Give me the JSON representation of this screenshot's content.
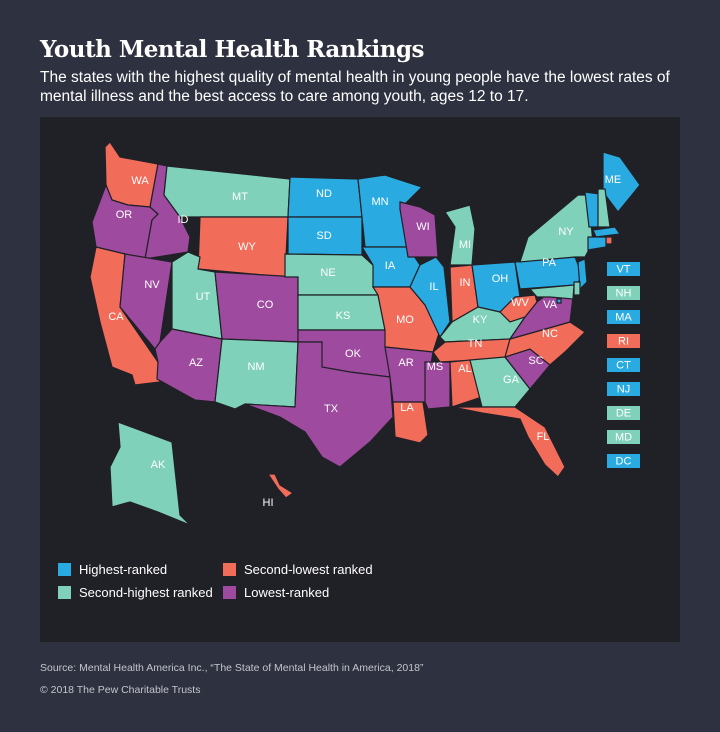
{
  "header": {
    "title": "Youth Mental Health Rankings",
    "subtitle": "The states with the highest quality of mental health in young people have the lowest rates of mental illness and the best access to care among youth, ages 12 to 17."
  },
  "colors": {
    "highest": "#29abe2",
    "second_highest": "#7fd1b9",
    "second_lowest": "#f26c5a",
    "lowest": "#9e4a9e"
  },
  "legend": [
    {
      "key": "highest",
      "label": "Highest-ranked"
    },
    {
      "key": "second_highest",
      "label": "Second-highest ranked"
    },
    {
      "key": "second_lowest",
      "label": "Second-lowest ranked"
    },
    {
      "key": "lowest",
      "label": "Lowest-ranked"
    }
  ],
  "states": [
    {
      "abbr": "WA",
      "rank": "second_lowest"
    },
    {
      "abbr": "OR",
      "rank": "lowest"
    },
    {
      "abbr": "CA",
      "rank": "second_lowest"
    },
    {
      "abbr": "ID",
      "rank": "lowest"
    },
    {
      "abbr": "NV",
      "rank": "lowest"
    },
    {
      "abbr": "MT",
      "rank": "second_highest"
    },
    {
      "abbr": "WY",
      "rank": "second_lowest"
    },
    {
      "abbr": "UT",
      "rank": "second_highest"
    },
    {
      "abbr": "CO",
      "rank": "lowest"
    },
    {
      "abbr": "AZ",
      "rank": "lowest"
    },
    {
      "abbr": "NM",
      "rank": "second_highest"
    },
    {
      "abbr": "ND",
      "rank": "highest"
    },
    {
      "abbr": "SD",
      "rank": "highest"
    },
    {
      "abbr": "NE",
      "rank": "second_highest"
    },
    {
      "abbr": "KS",
      "rank": "second_highest"
    },
    {
      "abbr": "OK",
      "rank": "lowest"
    },
    {
      "abbr": "TX",
      "rank": "lowest"
    },
    {
      "abbr": "MN",
      "rank": "highest"
    },
    {
      "abbr": "IA",
      "rank": "highest"
    },
    {
      "abbr": "MO",
      "rank": "second_lowest"
    },
    {
      "abbr": "AR",
      "rank": "lowest"
    },
    {
      "abbr": "LA",
      "rank": "second_lowest"
    },
    {
      "abbr": "WI",
      "rank": "lowest"
    },
    {
      "abbr": "IL",
      "rank": "highest"
    },
    {
      "abbr": "MI",
      "rank": "second_highest"
    },
    {
      "abbr": "IN",
      "rank": "second_lowest"
    },
    {
      "abbr": "OH",
      "rank": "highest"
    },
    {
      "abbr": "KY",
      "rank": "second_highest"
    },
    {
      "abbr": "TN",
      "rank": "second_lowest"
    },
    {
      "abbr": "MS",
      "rank": "lowest"
    },
    {
      "abbr": "AL",
      "rank": "second_lowest"
    },
    {
      "abbr": "GA",
      "rank": "second_highest"
    },
    {
      "abbr": "FL",
      "rank": "second_lowest"
    },
    {
      "abbr": "SC",
      "rank": "lowest"
    },
    {
      "abbr": "NC",
      "rank": "second_lowest"
    },
    {
      "abbr": "VA",
      "rank": "lowest"
    },
    {
      "abbr": "WV",
      "rank": "second_lowest"
    },
    {
      "abbr": "PA",
      "rank": "highest"
    },
    {
      "abbr": "NY",
      "rank": "second_highest"
    },
    {
      "abbr": "ME",
      "rank": "highest"
    },
    {
      "abbr": "AK",
      "rank": "second_highest"
    },
    {
      "abbr": "HI",
      "rank": "second_lowest"
    }
  ],
  "small_states": [
    {
      "abbr": "VT",
      "rank": "highest"
    },
    {
      "abbr": "NH",
      "rank": "second_highest"
    },
    {
      "abbr": "MA",
      "rank": "highest"
    },
    {
      "abbr": "RI",
      "rank": "second_lowest"
    },
    {
      "abbr": "CT",
      "rank": "highest"
    },
    {
      "abbr": "NJ",
      "rank": "highest"
    },
    {
      "abbr": "DE",
      "rank": "second_highest"
    },
    {
      "abbr": "MD",
      "rank": "second_highest"
    },
    {
      "abbr": "DC",
      "rank": "highest"
    }
  ],
  "footer": {
    "source": "Source: Mental Health America Inc., “The State of Mental Health in America, 2018”",
    "copyright": "© 2018 The Pew Charitable Trusts"
  }
}
